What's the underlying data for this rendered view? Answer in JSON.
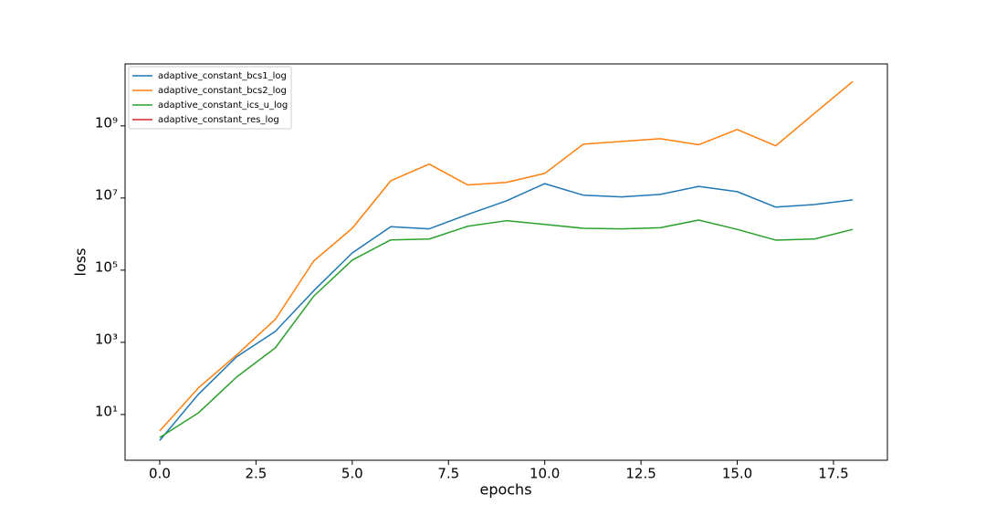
{
  "chart_data": {
    "type": "line",
    "xlabel": "epochs",
    "ylabel": "loss",
    "x": [
      0,
      1,
      2,
      3,
      4,
      5,
      6,
      7,
      8,
      9,
      10,
      11,
      12,
      13,
      14,
      15,
      16,
      17,
      18
    ],
    "series": [
      {
        "name": "adaptive_constant_bcs1_log",
        "color": "#1f77b4",
        "values": [
          1.9,
          36,
          400,
          2000,
          27000,
          300000,
          1600000,
          1400000,
          3500000,
          8300000,
          25000000,
          12000000,
          10700000,
          12600000,
          21000000,
          15000000,
          5600000,
          6600000,
          8900000
        ]
      },
      {
        "name": "adaptive_constant_bcs2_log",
        "color": "#ff7f0e",
        "values": [
          3.5,
          54,
          450,
          4300,
          180000,
          1450000,
          30000000,
          87000000,
          23000000,
          27000000,
          48000000,
          310000000,
          370000000,
          440000000,
          300000000,
          790000000,
          280000000,
          2200000000,
          17000000000
        ]
      },
      {
        "name": "adaptive_constant_ics_u_log",
        "color": "#2ca02c",
        "values": [
          2.3,
          11,
          110,
          700,
          19000,
          190000,
          690000,
          730000,
          1650000,
          2350000,
          1850000,
          1450000,
          1400000,
          1500000,
          2450000,
          1350000,
          680000,
          730000,
          1350000
        ]
      },
      {
        "name": "adaptive_constant_res_log",
        "color": "#d62728",
        "values": [
          null,
          null,
          null,
          null,
          null,
          null,
          null,
          null,
          null,
          null,
          null,
          null,
          null,
          null,
          null,
          null,
          null,
          null,
          null
        ]
      }
    ],
    "xlim": [
      -0.9,
      18.9
    ],
    "xticks": [
      {
        "value": 0,
        "label": "0.0"
      },
      2.5,
      {
        "value": 5,
        "label": "5.0"
      },
      7.5,
      {
        "value": 10,
        "label": "10.0"
      },
      12.5,
      {
        "value": 15,
        "label": "15.0"
      },
      17.5
    ],
    "ylim": [
      0.54,
      52000000000
    ],
    "yticks": [
      {
        "value": 10,
        "label": "10¹"
      },
      {
        "value": 1000,
        "label": "10³"
      },
      {
        "value": 100000,
        "label": "10⁵"
      },
      {
        "value": 10000000,
        "label": "10⁷"
      },
      {
        "value": 1000000000,
        "label": "10⁹"
      }
    ],
    "yscale": "log",
    "grid": false,
    "legend": "upper left"
  }
}
